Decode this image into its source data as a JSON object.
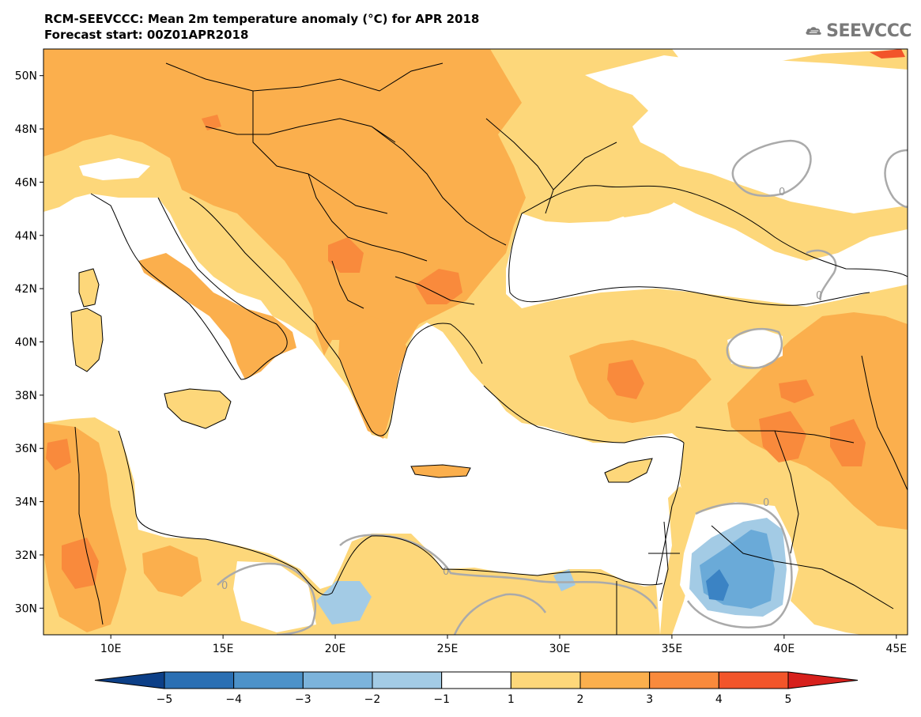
{
  "header": {
    "title": "RCM-SEEVCCC: Mean 2m temperature anomaly (°C) for APR 2018",
    "subtitle": "Forecast start: 00Z01APR2018"
  },
  "logo": {
    "text": "SEEVCCC",
    "icon": "cloud-icon"
  },
  "map": {
    "lat_labels": [
      "50N",
      "48N",
      "46N",
      "44N",
      "42N",
      "40N",
      "38N",
      "36N",
      "34N",
      "32N",
      "30N"
    ],
    "lon_labels": [
      "10E",
      "15E",
      "20E",
      "25E",
      "30E",
      "35E",
      "40E",
      "45E"
    ],
    "lat_values": [
      50,
      48,
      46,
      44,
      42,
      40,
      38,
      36,
      34,
      32,
      30
    ],
    "lon_values": [
      10,
      15,
      20,
      25,
      30,
      35,
      40,
      45
    ],
    "extent": {
      "lon_min": 7,
      "lon_max": 45.5,
      "lat_min": 29,
      "lat_max": 51
    },
    "contour_labels": [
      "0",
      "0",
      "0",
      "0",
      "0"
    ],
    "colors": {
      "sea": "#ffffff",
      "anom_1_2": "#fdd77a",
      "anom_2_3": "#fbaf4d",
      "anom_3_4": "#f98a3c",
      "anom_4_5": "#f2552a",
      "anom_m1_m2": "#a3cbe5",
      "anom_m2_m3": "#6aaad8",
      "anom_m3_m4": "#3b83c4",
      "zero_contour": "#aaaaaa",
      "border": "#000000"
    }
  },
  "colorbar": {
    "labels": [
      "−5",
      "−4",
      "−3",
      "−2",
      "−1",
      "1",
      "2",
      "3",
      "4",
      "5"
    ],
    "bins": [
      "#0c3f87",
      "#2a6fb3",
      "#4d92c9",
      "#7cb3db",
      "#a3cbe5",
      "#ffffff",
      "#fdd77a",
      "#fbaf4d",
      "#f98a3c",
      "#f2552a",
      "#d7201c"
    ]
  }
}
